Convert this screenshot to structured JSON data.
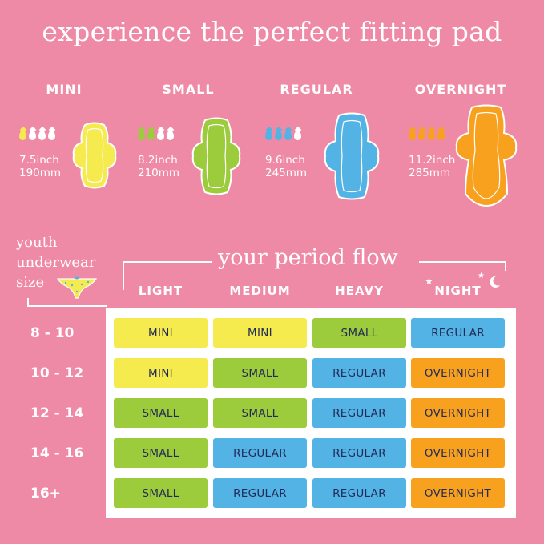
{
  "title": "experience the perfect fitting pad",
  "pads": [
    {
      "name": "MINI",
      "inch": "7.5inch",
      "mm": "190mm",
      "drops_filled": 1,
      "color": "#f5ea4e"
    },
    {
      "name": "SMALL",
      "inch": "8.2inch",
      "mm": "210mm",
      "drops_filled": 2,
      "color": "#9ccb3c"
    },
    {
      "name": "REGULAR",
      "inch": "9.6inch",
      "mm": "245mm",
      "drops_filled": 3,
      "color": "#52b3e4"
    },
    {
      "name": "OVERNIGHT",
      "inch": "11.2inch",
      "mm": "285mm",
      "drops_filled": 4,
      "color": "#f8a11e"
    }
  ],
  "side_label": {
    "line1": "youth",
    "line2": "underwear",
    "line3": "size"
  },
  "flow_title": "your period flow",
  "columns": [
    "LIGHT",
    "MEDIUM",
    "HEAVY",
    "NIGHT"
  ],
  "rows": [
    {
      "size": "8 - 10",
      "cells": [
        "MINI",
        "MINI",
        "SMALL",
        "REGULAR"
      ]
    },
    {
      "size": "10 - 12",
      "cells": [
        "MINI",
        "SMALL",
        "REGULAR",
        "OVERNIGHT"
      ]
    },
    {
      "size": "12 - 14",
      "cells": [
        "SMALL",
        "SMALL",
        "REGULAR",
        "OVERNIGHT"
      ]
    },
    {
      "size": "14 - 16",
      "cells": [
        "SMALL",
        "REGULAR",
        "REGULAR",
        "OVERNIGHT"
      ]
    },
    {
      "size": "16+",
      "cells": [
        "SMALL",
        "REGULAR",
        "REGULAR",
        "OVERNIGHT"
      ]
    }
  ],
  "colors": {
    "background": "#ef8aa6",
    "mini": "#f5ea4e",
    "small": "#9ccb3c",
    "regular": "#52b3e4",
    "overnight": "#f8a11e",
    "cell_text": "#222a56"
  }
}
